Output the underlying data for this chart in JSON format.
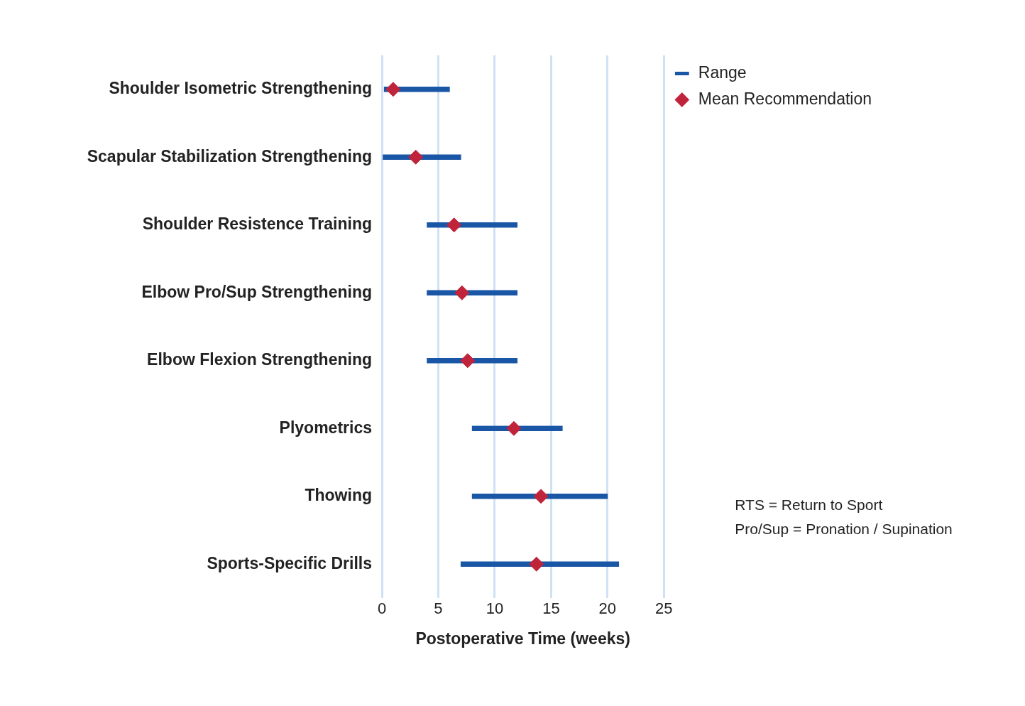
{
  "chart_data": {
    "type": "bar",
    "orientation": "horizontal",
    "xlabel": "Postoperative Time (weeks)",
    "categories": [
      "Shoulder Isometric Strengthening",
      "Scapular Stabilization Strengthening",
      "Shoulder Resistence Training",
      "Elbow Pro/Sup Strengthening",
      "Elbow Flexion Strengthening",
      "Plyometrics",
      "Thowing",
      "Sports-Specific Drills"
    ],
    "series": [
      {
        "name": "Range",
        "color": "#1a56a6",
        "base": [
          0.2,
          0,
          4,
          4,
          4,
          8,
          8,
          7
        ],
        "values": [
          5.8,
          7,
          8,
          8,
          8,
          8,
          12,
          14
        ]
      },
      {
        "name": "Mean Recommendation",
        "type": "scatter",
        "marker": "diamond",
        "color": "#c0243a",
        "values": [
          1,
          3,
          6.4,
          7.1,
          7.6,
          11.7,
          14.1,
          13.7
        ]
      }
    ],
    "xlim": [
      0,
      25
    ],
    "xticks": [
      0,
      5,
      10,
      15,
      20,
      25
    ],
    "grid": "x",
    "legend": "top right",
    "annotations": [
      "RTS = Return to Sport",
      "Pro/Sup = Pronation / Supination"
    ]
  }
}
